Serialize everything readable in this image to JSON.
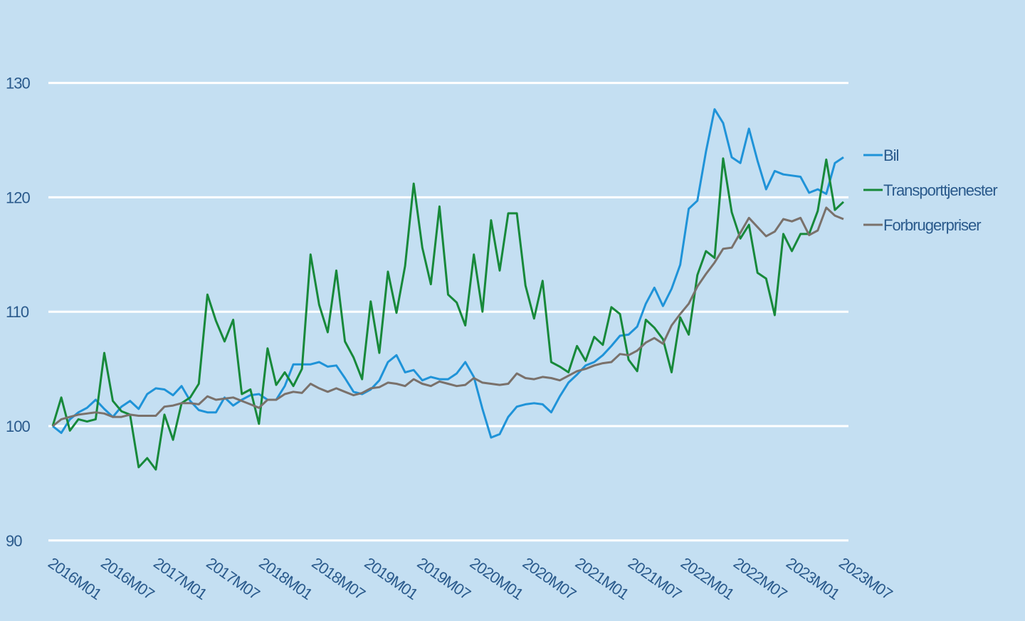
{
  "chart_data": {
    "type": "line",
    "title": "",
    "xlabel": "",
    "ylabel": "",
    "ylim": [
      90,
      130
    ],
    "yticks": [
      90,
      100,
      110,
      120,
      130
    ],
    "x_start": "2016M01",
    "x_end": "2023M07",
    "xticks": [
      "2016M01",
      "2016M07",
      "2017M01",
      "2017M07",
      "2018M01",
      "2018M07",
      "2019M01",
      "2019M07",
      "2020M01",
      "2020M07",
      "2021M01",
      "2021M07",
      "2022M01",
      "2022M07",
      "2023M01",
      "2023M07"
    ],
    "grid": true,
    "legend_position": "right",
    "colors": {
      "Bil": "#1f93d8",
      "Transporttjenester": "#17893a",
      "Forbrugerpriser": "#7a716b",
      "grid": "#ffffff",
      "text": "#2a5a8c"
    },
    "series": [
      {
        "name": "Bil",
        "values": [
          100,
          99.4,
          100.6,
          101.2,
          101.6,
          102.3,
          101.5,
          100.8,
          101.7,
          102.2,
          101.5,
          102.8,
          103.3,
          103.2,
          102.7,
          103.5,
          102.2,
          101.4,
          101.2,
          101.2,
          102.5,
          101.8,
          102.3,
          102.7,
          102.8,
          102.3,
          102.3,
          103.5,
          105.4,
          105.4,
          105.4,
          105.6,
          105.2,
          105.3,
          104.2,
          103,
          102.8,
          103.2,
          104,
          105.6,
          106.2,
          104.7,
          104.9,
          104,
          104.3,
          104.1,
          104.1,
          104.6,
          105.6,
          104.3,
          101.5,
          99,
          99.3,
          100.8,
          101.7,
          101.9,
          102,
          101.9,
          101.2,
          102.6,
          103.8,
          104.5,
          105.3,
          105.6,
          106.2,
          107,
          107.9,
          108,
          108.7,
          110.7,
          112.1,
          110.5,
          112,
          114.1,
          119,
          119.7,
          124,
          127.7,
          126.5,
          123.5,
          123,
          126,
          123.2,
          120.7,
          122.3,
          122,
          121.9,
          121.8,
          120.4,
          120.7,
          120.3,
          123,
          123.5
        ]
      },
      {
        "name": "Transporttjenester",
        "values": [
          100,
          102.5,
          99.6,
          100.6,
          100.4,
          100.6,
          106.4,
          102.2,
          101.3,
          101,
          96.4,
          97.2,
          96.2,
          101,
          98.8,
          102,
          102.5,
          103.7,
          111.5,
          109.2,
          107.4,
          109.3,
          102.8,
          103.2,
          100.2,
          106.8,
          103.6,
          104.7,
          103.5,
          105,
          115,
          110.6,
          108.2,
          113.6,
          107.4,
          106,
          104.1,
          110.9,
          106.4,
          113.5,
          109.9,
          114,
          121.2,
          115.6,
          112.4,
          119.2,
          111.5,
          110.8,
          108.8,
          115,
          110,
          118,
          113.6,
          118.6,
          118.6,
          112.3,
          109.4,
          112.7,
          105.6,
          105.2,
          104.7,
          107,
          105.7,
          107.8,
          107.1,
          110.4,
          109.8,
          105.8,
          104.8,
          109.3,
          108.6,
          107.6,
          104.7,
          109.5,
          108,
          113.2,
          115.3,
          114.7,
          123.4,
          118.7,
          116.4,
          117.6,
          113.4,
          112.9,
          109.7,
          116.8,
          115.3,
          116.8,
          116.8,
          118.8,
          123.3,
          118.9,
          119.6
        ]
      },
      {
        "name": "Forbrugerpriser",
        "values": [
          100,
          100.6,
          100.8,
          101,
          101.1,
          101.2,
          101.1,
          100.8,
          100.8,
          101,
          100.9,
          100.9,
          100.9,
          101.7,
          101.8,
          102,
          102,
          101.9,
          102.6,
          102.3,
          102.4,
          102.5,
          102.2,
          101.9,
          101.6,
          102.3,
          102.3,
          102.8,
          103,
          102.9,
          103.7,
          103.3,
          103,
          103.3,
          103,
          102.7,
          102.9,
          103.3,
          103.4,
          103.8,
          103.7,
          103.5,
          104.1,
          103.7,
          103.5,
          103.9,
          103.7,
          103.5,
          103.6,
          104.2,
          103.8,
          103.7,
          103.6,
          103.7,
          104.6,
          104.2,
          104.1,
          104.3,
          104.2,
          104,
          104.4,
          104.8,
          105,
          105.3,
          105.5,
          105.6,
          106.3,
          106.2,
          106.6,
          107.3,
          107.7,
          107.2,
          108.8,
          109.8,
          110.7,
          112.2,
          113.3,
          114.3,
          115.5,
          115.6,
          116.9,
          118.2,
          117.4,
          116.6,
          117,
          118.1,
          117.9,
          118.2,
          116.7,
          117.1,
          119.1,
          118.4,
          118.1
        ]
      }
    ]
  }
}
